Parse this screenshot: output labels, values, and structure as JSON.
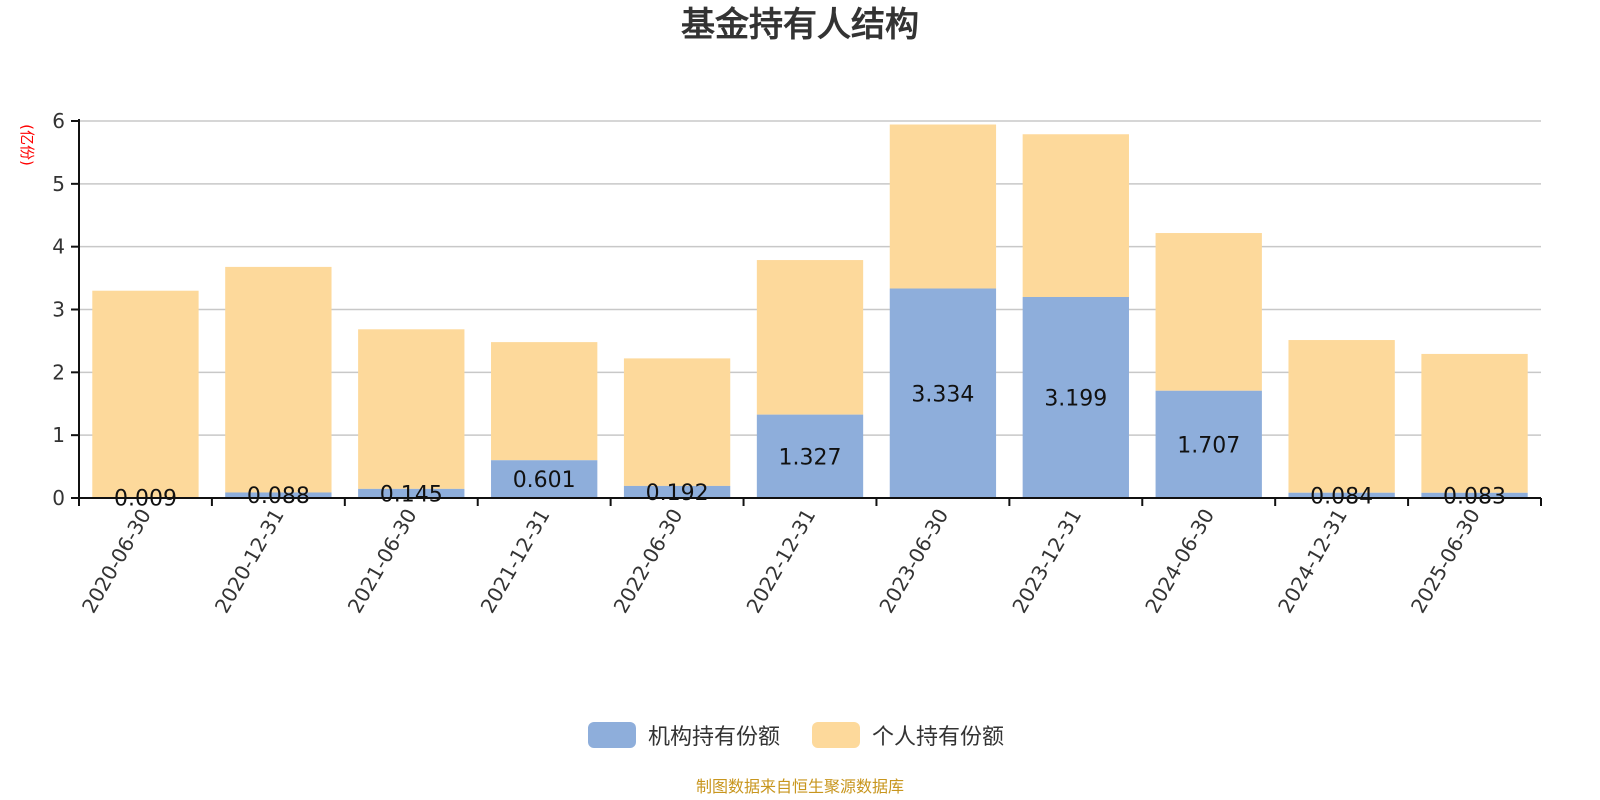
{
  "source_note": "制图数据来自恒生聚源数据库",
  "colors": {
    "institutional": "#8eaedb",
    "individual": "#fdd99b"
  },
  "chart_data": {
    "type": "bar",
    "stacked": true,
    "title": "基金持有人结构",
    "unit_label": "(亿份)",
    "categories": [
      "2020-06-30",
      "2020-12-31",
      "2021-06-30",
      "2021-12-31",
      "2022-06-30",
      "2022-12-31",
      "2023-06-30",
      "2023-12-31",
      "2024-06-30",
      "2024-12-31",
      "2025-06-30"
    ],
    "ylim": [
      0,
      6
    ],
    "yticks": [
      "0",
      "1",
      "2",
      "3",
      "4",
      "5",
      "6"
    ],
    "grid": true,
    "legend_position": "bottom-center",
    "series": [
      {
        "name": "机构持有份额",
        "values": [
          0.009,
          0.088,
          0.145,
          0.601,
          0.192,
          1.327,
          3.334,
          3.199,
          1.707,
          0.084,
          0.083
        ],
        "labels": [
          "0.009",
          "0.088",
          "0.145",
          "0.601",
          "0.192",
          "1.327",
          "3.334",
          "3.199",
          "1.707",
          "0.084",
          "0.083"
        ]
      },
      {
        "name": "个人持有份额",
        "values": [
          3.29,
          3.59,
          2.54,
          1.88,
          2.03,
          2.46,
          2.61,
          2.59,
          2.51,
          2.43,
          2.21
        ]
      }
    ]
  }
}
